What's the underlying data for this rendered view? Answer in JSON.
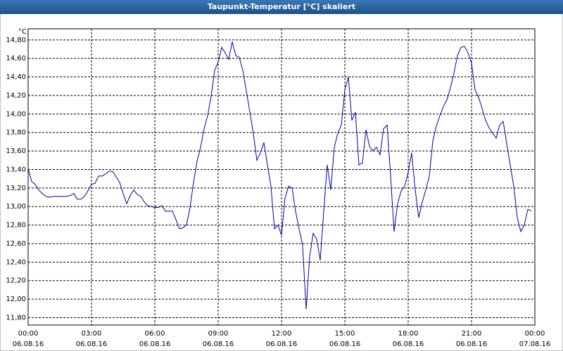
{
  "chart_data": {
    "type": "line",
    "title": "Taupunkt-Temperatur [°C] skaliert",
    "y_unit": "°C",
    "x": [
      0,
      10,
      20,
      30,
      40,
      50,
      60,
      70,
      80,
      90,
      100,
      110,
      120,
      130,
      140,
      150,
      160,
      170,
      180,
      190,
      200,
      210,
      220,
      230,
      240,
      250,
      260,
      270,
      280,
      290,
      300,
      310,
      320,
      330,
      340,
      350,
      360,
      370,
      380,
      390,
      400,
      410,
      420,
      430,
      440,
      450,
      460,
      470,
      480,
      490,
      500,
      510,
      520,
      530,
      540,
      550,
      560,
      570,
      580,
      590,
      600,
      610,
      620,
      630,
      640,
      650,
      660,
      670,
      680,
      690,
      700,
      710,
      720,
      730,
      740,
      750,
      760,
      770,
      780,
      790,
      800,
      810,
      820,
      830,
      840,
      850,
      860,
      870,
      880,
      890,
      900,
      910,
      920,
      930,
      940,
      950,
      960,
      970,
      980,
      990,
      1000,
      1010,
      1020,
      1030,
      1040,
      1050,
      1060,
      1070,
      1080,
      1090,
      1100,
      1110,
      1120,
      1130,
      1140,
      1150,
      1160,
      1170,
      1180,
      1190,
      1200,
      1210,
      1220,
      1230,
      1240,
      1250,
      1260,
      1270,
      1280,
      1290,
      1300,
      1310,
      1320,
      1330,
      1340,
      1350,
      1360,
      1370,
      1380,
      1390,
      1400,
      1410,
      1420,
      1430
    ],
    "series": [
      {
        "color": "#0000a8",
        "values": [
          13.41,
          13.27,
          13.24,
          13.18,
          13.14,
          13.11,
          13.1,
          13.11,
          13.11,
          13.11,
          13.11,
          13.11,
          13.12,
          13.14,
          13.08,
          13.08,
          13.11,
          13.17,
          13.24,
          13.25,
          13.33,
          13.33,
          13.35,
          13.38,
          13.38,
          13.32,
          13.26,
          13.14,
          13.03,
          13.12,
          13.18,
          13.13,
          13.11,
          13.05,
          13.01,
          13.0,
          12.99,
          12.99,
          13.01,
          12.95,
          12.95,
          12.95,
          12.86,
          12.76,
          12.77,
          12.8,
          12.99,
          13.26,
          13.49,
          13.64,
          13.84,
          13.98,
          14.19,
          14.47,
          14.56,
          14.72,
          14.66,
          14.59,
          14.78,
          14.63,
          14.61,
          14.47,
          14.25,
          14.02,
          13.79,
          13.5,
          13.58,
          13.69,
          13.45,
          13.22,
          12.76,
          12.8,
          12.69,
          13.09,
          13.22,
          13.2,
          12.95,
          12.76,
          12.58,
          11.89,
          12.46,
          12.71,
          12.65,
          12.42,
          12.95,
          13.45,
          13.18,
          13.64,
          13.79,
          13.88,
          14.26,
          14.4,
          13.93,
          14.02,
          13.45,
          13.47,
          13.83,
          13.65,
          13.6,
          13.64,
          13.56,
          13.84,
          13.88,
          13.33,
          12.73,
          13.03,
          13.17,
          13.22,
          13.37,
          13.58,
          13.18,
          12.88,
          13.05,
          13.18,
          13.33,
          13.71,
          13.87,
          13.98,
          14.08,
          14.15,
          14.28,
          14.44,
          14.63,
          14.72,
          14.73,
          14.66,
          14.55,
          14.26,
          14.18,
          14.06,
          13.93,
          13.85,
          13.79,
          13.74,
          13.88,
          13.92,
          13.68,
          13.45,
          13.22,
          12.88,
          12.73,
          12.8,
          12.97,
          12.95
        ]
      }
    ],
    "xlim": [
      0,
      1440
    ],
    "xticks": [
      {
        "value": 0,
        "label": "00:00"
      },
      {
        "value": 180,
        "label": "03:00"
      },
      {
        "value": 360,
        "label": "06:00"
      },
      {
        "value": 540,
        "label": "09:00"
      },
      {
        "value": 720,
        "label": "12:00"
      },
      {
        "value": 900,
        "label": "15:00"
      },
      {
        "value": 1080,
        "label": "18:00"
      },
      {
        "value": 1260,
        "label": "21:00"
      },
      {
        "value": 1440,
        "label": "00:00"
      }
    ],
    "xtick_dates": [
      "06.08.16",
      "06.08.16",
      "06.08.16",
      "06.08.16",
      "06.08.16",
      "06.08.16",
      "06.08.16",
      "06.08.16",
      "07.08.16"
    ],
    "ylim": [
      11.72,
      14.92
    ],
    "yticks": [
      {
        "value": 11.8,
        "label": "11,80"
      },
      {
        "value": 12.0,
        "label": "12,00"
      },
      {
        "value": 12.2,
        "label": "12,20"
      },
      {
        "value": 12.4,
        "label": "12,40"
      },
      {
        "value": 12.6,
        "label": "12,60"
      },
      {
        "value": 12.8,
        "label": "12,80"
      },
      {
        "value": 13.0,
        "label": "13,00"
      },
      {
        "value": 13.2,
        "label": "13,20"
      },
      {
        "value": 13.4,
        "label": "13,40"
      },
      {
        "value": 13.6,
        "label": "13,60"
      },
      {
        "value": 13.8,
        "label": "13,80"
      },
      {
        "value": 14.0,
        "label": "14,00"
      },
      {
        "value": 14.2,
        "label": "14,20"
      },
      {
        "value": 14.4,
        "label": "14,40"
      },
      {
        "value": 14.6,
        "label": "14,60"
      },
      {
        "value": 14.8,
        "label": "14,80"
      }
    ],
    "grid": true
  }
}
